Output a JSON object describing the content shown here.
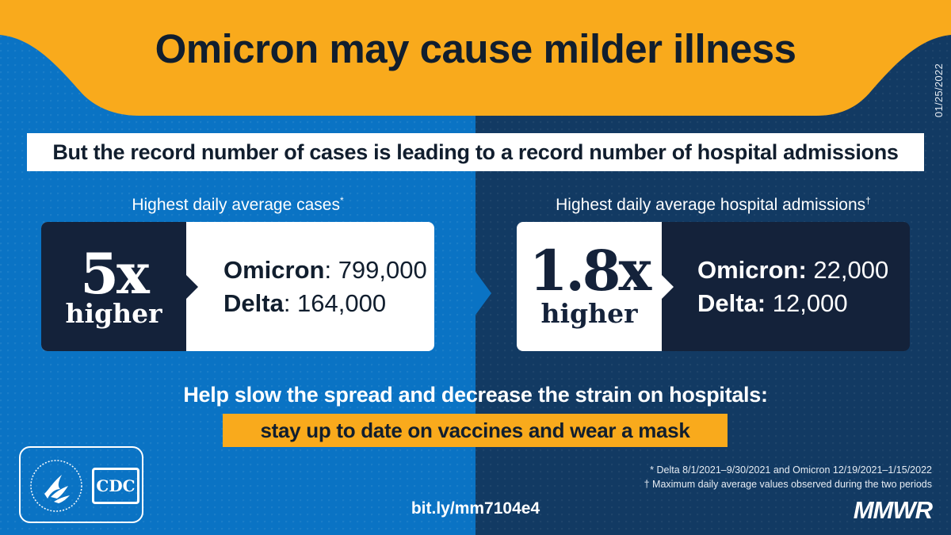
{
  "header": {
    "title": "Omicron may cause milder illness",
    "date": "01/25/2022"
  },
  "subtitle": "But the record number of cases is leading to a record number of hospital admissions",
  "panels": [
    {
      "label": "Highest daily average cases",
      "label_mark": "*",
      "multiplier": "5x",
      "multiplier_note": "higher",
      "omicron_label": "Omicron",
      "omicron_value": ": 799,000",
      "delta_label": "Delta",
      "delta_value": ": 164,000"
    },
    {
      "label": "Highest daily average hospital admissions",
      "label_mark": "†",
      "multiplier": "1.8x",
      "multiplier_note": "higher",
      "omicron_label": "Omicron:",
      "omicron_value": " 22,000",
      "delta_label": "Delta:",
      "delta_value": " 12,000"
    }
  ],
  "call_to_action": {
    "text": "Help slow the spread and decrease the strain on hospitals:",
    "highlight": "stay up to date on vaccines and wear a mask"
  },
  "footer": {
    "logo_text": "CDC",
    "link": "bit.ly/mm7104e4",
    "notes": [
      "* Delta 8/1/2021–9/30/2021 and Omicron 12/19/2021–1/15/2022",
      "† Maximum daily average values observed during the two periods"
    ],
    "brand": "MMWR"
  },
  "colors": {
    "accent_yellow": "#f9aa1c",
    "left_blue": "#0a73c4",
    "right_navy": "#123a63",
    "dark_panel": "#14223a"
  },
  "icons": {
    "hhs_logo": "hhs-eagle-seal-icon"
  }
}
